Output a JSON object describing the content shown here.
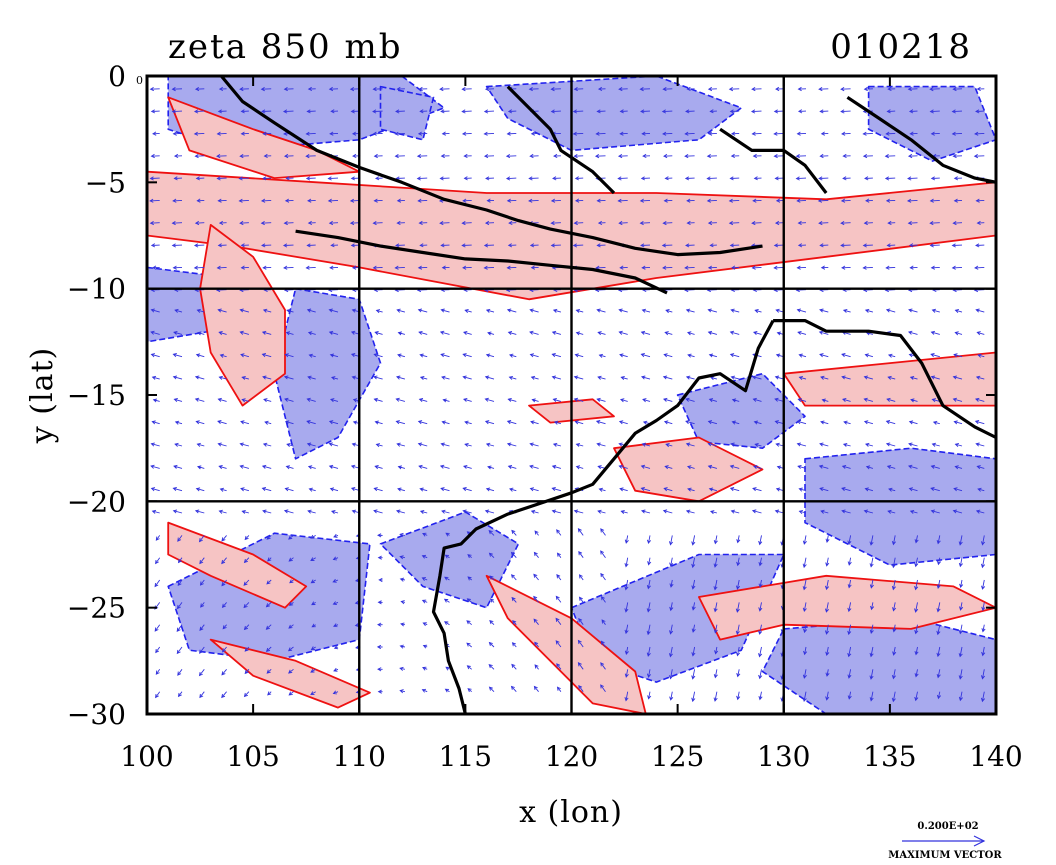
{
  "title": "zeta 850 mb",
  "date": "010218",
  "corner_label": "0 E",
  "legend": {
    "value": "0.200E+02",
    "label": "MAXIMUM VECTOR",
    "color": "#3333dd"
  },
  "colors": {
    "positive_fill": "#f6c4c4",
    "positive_contour": "#ee1111",
    "negative_fill": "#a8aaee",
    "negative_contour": "#2222ee",
    "vector": "#3333dd",
    "coast": "#000000"
  },
  "chart_data": {
    "type": "map",
    "xlabel": "x (lon)",
    "ylabel": "y (lat)",
    "xlim": [
      100,
      140
    ],
    "ylim": [
      -30,
      0
    ],
    "xticks": [
      100,
      105,
      110,
      115,
      120,
      125,
      130,
      135,
      140
    ],
    "yticks": [
      0,
      -5,
      -10,
      -15,
      -20,
      -25,
      -30
    ],
    "xtick_labels": [
      "100",
      "105",
      "110",
      "115",
      "120",
      "125",
      "130",
      "135",
      "140"
    ],
    "ytick_labels": [
      "0",
      "−5",
      "−10",
      "−15",
      "−20",
      "−25",
      "−30"
    ],
    "gridlines_x": [
      110,
      120,
      130
    ],
    "gridlines_y": [
      -10,
      -20
    ],
    "positive_regions": [
      [
        [
          100,
          -4.5
        ],
        [
          108,
          -5
        ],
        [
          116,
          -5.5
        ],
        [
          124,
          -5.5
        ],
        [
          132,
          -5.8
        ],
        [
          140,
          -5
        ],
        [
          140,
          -7.5
        ],
        [
          132,
          -8.5
        ],
        [
          124,
          -9.5
        ],
        [
          118,
          -10.5
        ],
        [
          110,
          -9
        ],
        [
          104,
          -8
        ],
        [
          100,
          -7.5
        ]
      ],
      [
        [
          103,
          -7
        ],
        [
          105,
          -8.5
        ],
        [
          106.5,
          -11
        ],
        [
          106.5,
          -14
        ],
        [
          104.5,
          -15.5
        ],
        [
          103,
          -13
        ],
        [
          102.5,
          -10
        ]
      ],
      [
        [
          101,
          -1
        ],
        [
          105,
          -2.5
        ],
        [
          108,
          -3.5
        ],
        [
          110,
          -4.5
        ],
        [
          106,
          -4.8
        ],
        [
          102,
          -3.5
        ]
      ],
      [
        [
          101,
          -21
        ],
        [
          105,
          -22.5
        ],
        [
          107.5,
          -24
        ],
        [
          106.5,
          -25
        ],
        [
          103,
          -23.5
        ],
        [
          101,
          -22.5
        ]
      ],
      [
        [
          103,
          -26.5
        ],
        [
          107,
          -27.5
        ],
        [
          110.5,
          -29
        ],
        [
          109,
          -29.7
        ],
        [
          105,
          -28.2
        ]
      ],
      [
        [
          116,
          -23.5
        ],
        [
          120,
          -25.5
        ],
        [
          123,
          -28
        ],
        [
          123.5,
          -30
        ],
        [
          121,
          -29.5
        ],
        [
          117,
          -25.5
        ]
      ],
      [
        [
          126,
          -24.5
        ],
        [
          132,
          -23.5
        ],
        [
          138,
          -24
        ],
        [
          140,
          -25
        ],
        [
          136,
          -26
        ],
        [
          130,
          -25.8
        ],
        [
          127,
          -26.5
        ]
      ],
      [
        [
          130,
          -14
        ],
        [
          135,
          -13.5
        ],
        [
          140,
          -13
        ],
        [
          140,
          -15.5
        ],
        [
          136,
          -15.5
        ],
        [
          131,
          -15.5
        ]
      ],
      [
        [
          118,
          -15.5
        ],
        [
          121,
          -15.2
        ],
        [
          122,
          -16
        ],
        [
          119,
          -16.3
        ]
      ],
      [
        [
          122,
          -17.5
        ],
        [
          126,
          -17
        ],
        [
          129,
          -18.5
        ],
        [
          126,
          -20
        ],
        [
          123,
          -19.5
        ]
      ]
    ],
    "negative_regions": [
      [
        [
          101,
          0
        ],
        [
          112,
          0
        ],
        [
          114,
          -1.5
        ],
        [
          110,
          -3
        ],
        [
          104,
          -3.5
        ],
        [
          101,
          -2.5
        ]
      ],
      [
        [
          116,
          -0.5
        ],
        [
          124,
          0
        ],
        [
          128,
          -1.5
        ],
        [
          126,
          -3
        ],
        [
          120,
          -3.5
        ],
        [
          117,
          -2
        ]
      ],
      [
        [
          100,
          -9
        ],
        [
          104,
          -9.5
        ],
        [
          103,
          -12
        ],
        [
          100,
          -12.5
        ]
      ],
      [
        [
          107,
          -10
        ],
        [
          110,
          -10.5
        ],
        [
          111,
          -13.5
        ],
        [
          109,
          -17
        ],
        [
          107,
          -18
        ],
        [
          106,
          -14
        ]
      ],
      [
        [
          101,
          -24
        ],
        [
          106,
          -21.5
        ],
        [
          110.5,
          -22
        ],
        [
          110,
          -26.5
        ],
        [
          106,
          -27.5
        ],
        [
          102,
          -27
        ]
      ],
      [
        [
          111,
          -22
        ],
        [
          115,
          -20.5
        ],
        [
          117.5,
          -22
        ],
        [
          116,
          -25
        ],
        [
          113,
          -24
        ]
      ],
      [
        [
          120,
          -25
        ],
        [
          126,
          -22.5
        ],
        [
          130,
          -22.5
        ],
        [
          128,
          -27
        ],
        [
          124,
          -28.5
        ],
        [
          121,
          -27.5
        ]
      ],
      [
        [
          130,
          -26
        ],
        [
          136,
          -25.5
        ],
        [
          140,
          -26.5
        ],
        [
          140,
          -30
        ],
        [
          132,
          -30
        ],
        [
          129,
          -28
        ]
      ],
      [
        [
          131,
          -18
        ],
        [
          136,
          -17.5
        ],
        [
          140,
          -18
        ],
        [
          140,
          -22.5
        ],
        [
          135,
          -23
        ],
        [
          131,
          -21
        ]
      ],
      [
        [
          125,
          -15
        ],
        [
          129,
          -14
        ],
        [
          131,
          -16
        ],
        [
          129,
          -17.5
        ],
        [
          126,
          -17.2
        ]
      ],
      [
        [
          134,
          -0.5
        ],
        [
          139,
          -0.5
        ],
        [
          140,
          -3
        ],
        [
          137,
          -4
        ],
        [
          134,
          -2.5
        ]
      ],
      [
        [
          111,
          -0.5
        ],
        [
          113.5,
          -1
        ],
        [
          113,
          -3
        ],
        [
          111,
          -2.5
        ]
      ]
    ],
    "coastlines": [
      [
        [
          103.5,
          0
        ],
        [
          104.5,
          -1.2
        ],
        [
          106,
          -2.2
        ],
        [
          108,
          -3.5
        ],
        [
          110,
          -4.3
        ],
        [
          112,
          -5
        ],
        [
          114,
          -5.8
        ],
        [
          116,
          -6.3
        ],
        [
          117.5,
          -6.8
        ],
        [
          119,
          -7.2
        ],
        [
          121,
          -7.6
        ],
        [
          123,
          -8.1
        ],
        [
          125,
          -8.4
        ],
        [
          127,
          -8.3
        ],
        [
          129,
          -8
        ]
      ],
      [
        [
          107,
          -7.3
        ],
        [
          109,
          -7.6
        ],
        [
          111,
          -8
        ],
        [
          113,
          -8.3
        ],
        [
          115,
          -8.6
        ],
        [
          117,
          -8.7
        ],
        [
          119,
          -8.9
        ],
        [
          121,
          -9.1
        ],
        [
          123,
          -9.5
        ],
        [
          124.5,
          -10.2
        ]
      ],
      [
        [
          117,
          -0.5
        ],
        [
          118,
          -1.5
        ],
        [
          119,
          -2.5
        ],
        [
          119.5,
          -3.5
        ],
        [
          121,
          -4.5
        ],
        [
          122,
          -5.5
        ]
      ],
      [
        [
          127,
          -2.5
        ],
        [
          128.5,
          -3.5
        ],
        [
          130,
          -3.5
        ],
        [
          131,
          -4.2
        ],
        [
          132,
          -5.5
        ]
      ],
      [
        [
          133,
          -1
        ],
        [
          134.5,
          -2
        ],
        [
          136,
          -3
        ],
        [
          137.5,
          -4.2
        ],
        [
          139,
          -4.8
        ],
        [
          140,
          -5
        ]
      ],
      [
        [
          129.5,
          -11.5
        ],
        [
          131,
          -11.5
        ],
        [
          132,
          -12
        ],
        [
          134,
          -12
        ],
        [
          135.5,
          -12.2
        ],
        [
          136.5,
          -13.5
        ],
        [
          137.5,
          -15.5
        ],
        [
          139,
          -16.5
        ],
        [
          140,
          -17
        ]
      ],
      [
        [
          129.5,
          -11.5
        ],
        [
          128.8,
          -12.8
        ],
        [
          128.2,
          -14.8
        ],
        [
          127,
          -14
        ],
        [
          126,
          -14.2
        ],
        [
          125,
          -15.5
        ],
        [
          124,
          -16.2
        ],
        [
          123,
          -16.8
        ],
        [
          122,
          -18
        ],
        [
          121,
          -19.2
        ],
        [
          120,
          -19.6
        ],
        [
          118.5,
          -20.1
        ],
        [
          117,
          -20.6
        ],
        [
          115.5,
          -21.3
        ],
        [
          114.8,
          -22
        ],
        [
          114,
          -22.2
        ],
        [
          113.8,
          -23.5
        ],
        [
          113.5,
          -25.2
        ],
        [
          114,
          -26.2
        ],
        [
          114.2,
          -27.5
        ],
        [
          114.7,
          -28.8
        ],
        [
          115,
          -30
        ]
      ]
    ],
    "vector_field": {
      "description": "850 mb wind vectors",
      "maximum_vector": "0.200E+02"
    }
  }
}
